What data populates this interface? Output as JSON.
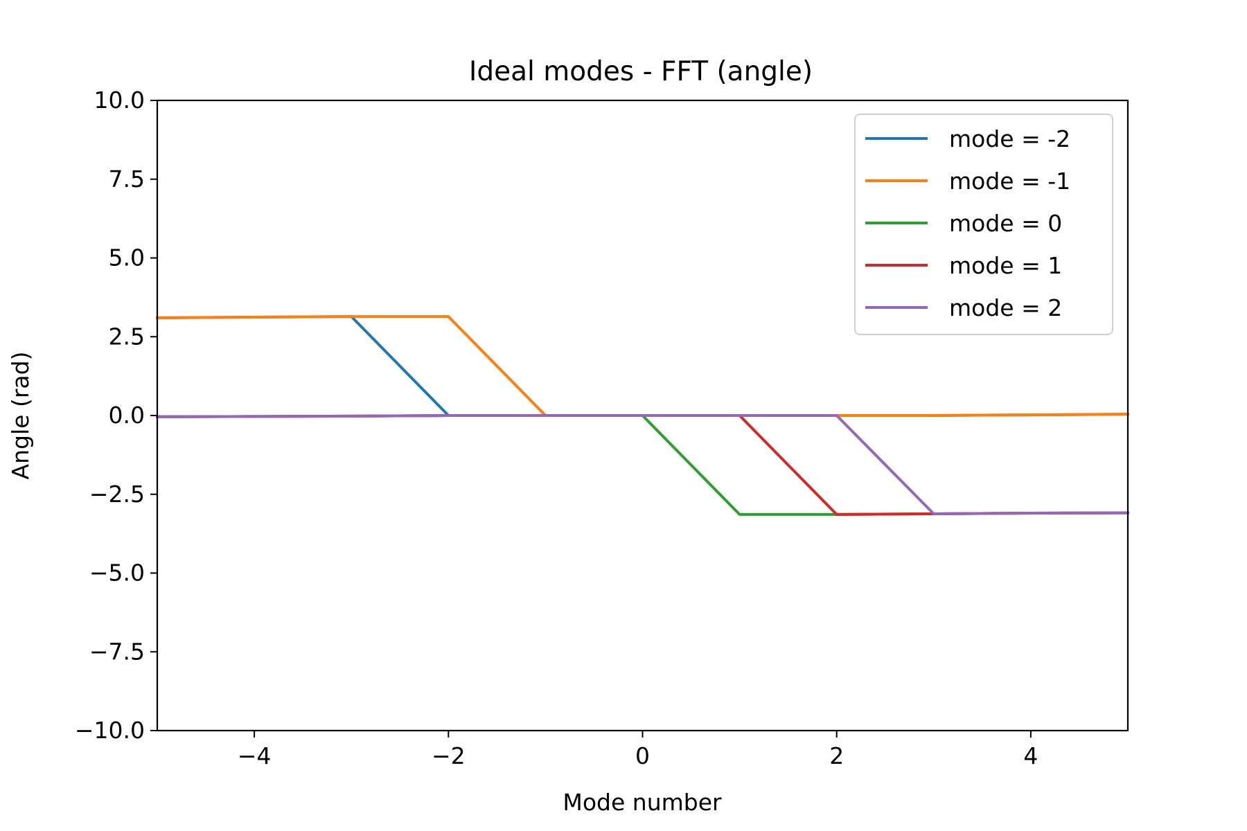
{
  "chart_data": {
    "type": "line",
    "title": "Ideal modes - FFT (angle)",
    "xlabel": "Mode number",
    "ylabel": "Angle (rad)",
    "xlim": [
      -5,
      5
    ],
    "ylim": [
      -10,
      10
    ],
    "grid": false,
    "legend_position": "top-right",
    "x_ticks": [
      -4,
      -2,
      0,
      2,
      4
    ],
    "x_tick_labels": [
      "−4",
      "−2",
      "0",
      "2",
      "4"
    ],
    "y_ticks": [
      10,
      7.5,
      5,
      2.5,
      0,
      -2.5,
      -5,
      -7.5,
      -10
    ],
    "y_tick_labels": [
      "10.0",
      "7.5",
      "5.0",
      "2.5",
      "0.0",
      "−2.5",
      "−5.0",
      "−7.5",
      "−10.0"
    ],
    "series": [
      {
        "name": "mode = -2",
        "color": "#1f77b4",
        "x": [
          -5,
          -4,
          -3,
          -2,
          -1,
          0,
          1,
          2,
          3,
          4,
          5
        ],
        "y": [
          3.1,
          3.12,
          3.14,
          0,
          0,
          0,
          0,
          0,
          0,
          0.02,
          0.04
        ]
      },
      {
        "name": "mode = -1",
        "color": "#ff7f0e",
        "x": [
          -5,
          -4,
          -3,
          -2,
          -1,
          0,
          1,
          2,
          3,
          4,
          5
        ],
        "y": [
          3.1,
          3.12,
          3.14,
          3.14,
          0,
          0,
          0,
          0,
          0,
          0.02,
          0.04
        ]
      },
      {
        "name": "mode = 0",
        "color": "#2ca02c",
        "x": [
          -5,
          -4,
          -3,
          -2,
          -1,
          0,
          1,
          2,
          3,
          4,
          5
        ],
        "y": [
          -0.04,
          -0.03,
          -0.02,
          0,
          0,
          0,
          -3.14,
          -3.14,
          -3.12,
          -3.1,
          -3.09
        ]
      },
      {
        "name": "mode = 1",
        "color": "#d62728",
        "x": [
          -5,
          -4,
          -3,
          -2,
          -1,
          0,
          1,
          2,
          3,
          4,
          5
        ],
        "y": [
          -0.04,
          -0.03,
          -0.02,
          0,
          0,
          0,
          0,
          -3.14,
          -3.12,
          -3.1,
          -3.09
        ]
      },
      {
        "name": "mode = 2",
        "color": "#9467bd",
        "x": [
          -5,
          -4,
          -3,
          -2,
          -1,
          0,
          1,
          2,
          3,
          4,
          5
        ],
        "y": [
          -0.04,
          -0.03,
          -0.02,
          0,
          0,
          0,
          0,
          0,
          -3.12,
          -3.1,
          -3.09
        ]
      }
    ]
  }
}
